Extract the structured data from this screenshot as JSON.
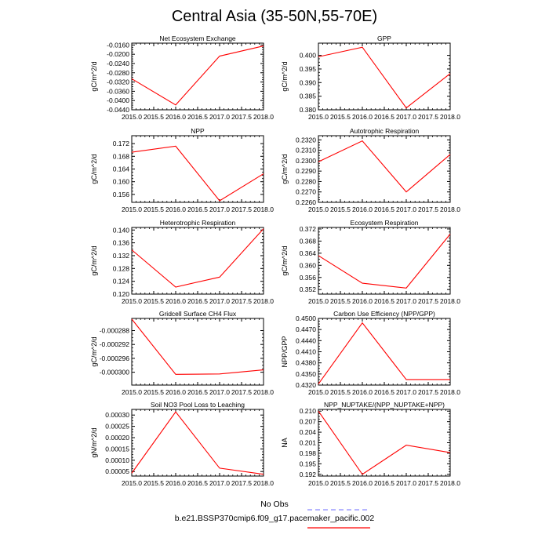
{
  "title": "Central Asia (35-50N,55-70E)",
  "legend": {
    "obs_label": "No Obs",
    "obs_color": "#8a8aff",
    "model_label": "b.e21.BSSP370cmip6.f09_g17.pacemaker_pacific.002",
    "model_color": "#ff0000"
  },
  "chart_data": [
    {
      "type": "line",
      "title": "Net Ecosystem Exchange",
      "ylabel": "gC/m^2/d",
      "x": [
        2015.0,
        2016.0,
        2017.0,
        2018.0
      ],
      "xlim": [
        2015.0,
        2018.0
      ],
      "xticks": [
        "2015.0",
        "2015.5",
        "2016.0",
        "2016.5",
        "2017.0",
        "2017.5",
        "2018.0"
      ],
      "ylim": [
        -0.044,
        -0.0152
      ],
      "yticks": [
        -0.044,
        -0.04,
        -0.036,
        -0.032,
        -0.028,
        -0.024,
        -0.02,
        -0.016
      ],
      "ytick_labels": [
        "-0.0440",
        "-0.0400",
        "-0.0360",
        "-0.0320",
        "-0.0280",
        "-0.0240",
        "-0.0200",
        "-0.0160"
      ],
      "series": [
        {
          "values": [
            -0.0306,
            -0.0419,
            -0.0208,
            -0.0164
          ]
        }
      ]
    },
    {
      "type": "line",
      "title": "GPP",
      "ylabel": "gC/m^2/d",
      "x": [
        2015.0,
        2016.0,
        2017.0,
        2018.0
      ],
      "xlim": [
        2015.0,
        2018.0
      ],
      "xticks": [
        "2015.0",
        "2015.5",
        "2016.0",
        "2016.5",
        "2017.0",
        "2017.5",
        "2018.0"
      ],
      "ylim": [
        0.38,
        0.4045
      ],
      "yticks": [
        0.38,
        0.385,
        0.39,
        0.395,
        0.4
      ],
      "ytick_labels": [
        "0.380",
        "0.385",
        "0.390",
        "0.395",
        "0.400"
      ],
      "series": [
        {
          "values": [
            0.3995,
            0.403,
            0.3807,
            0.3933
          ]
        }
      ]
    },
    {
      "type": "line",
      "title": "NPP",
      "ylabel": "gC/m^2/d",
      "x": [
        2015.0,
        2016.0,
        2017.0,
        2018.0
      ],
      "xlim": [
        2015.0,
        2018.0
      ],
      "xticks": [
        "2015.0",
        "2015.5",
        "2016.0",
        "2016.5",
        "2017.0",
        "2017.5",
        "2018.0"
      ],
      "ylim": [
        0.1535,
        0.1745
      ],
      "yticks": [
        0.156,
        0.16,
        0.164,
        0.168,
        0.172
      ],
      "ytick_labels": [
        "0.156",
        "0.160",
        "0.164",
        "0.168",
        "0.172"
      ],
      "series": [
        {
          "values": [
            0.1693,
            0.1712,
            0.154,
            0.1625
          ]
        }
      ]
    },
    {
      "type": "line",
      "title": "Autotrophic Respiration",
      "ylabel": "gC/m^2/d",
      "x": [
        2015.0,
        2016.0,
        2017.0,
        2018.0
      ],
      "xlim": [
        2015.0,
        2018.0
      ],
      "xticks": [
        "2015.0",
        "2015.5",
        "2016.0",
        "2016.5",
        "2017.0",
        "2017.5",
        "2018.0"
      ],
      "ylim": [
        0.226,
        0.2324
      ],
      "yticks": [
        0.226,
        0.227,
        0.228,
        0.229,
        0.23,
        0.231,
        0.232
      ],
      "ytick_labels": [
        "0.2260",
        "0.2270",
        "0.2280",
        "0.2290",
        "0.2300",
        "0.2310",
        "0.2320"
      ],
      "series": [
        {
          "values": [
            0.2299,
            0.2319,
            0.227,
            0.2306
          ]
        }
      ]
    },
    {
      "type": "line",
      "title": "Heterotrophic Respiration",
      "ylabel": "gC/m^2/d",
      "x": [
        2015.0,
        2016.0,
        2017.0,
        2018.0
      ],
      "xlim": [
        2015.0,
        2018.0
      ],
      "xticks": [
        "2015.0",
        "2015.5",
        "2016.0",
        "2016.5",
        "2017.0",
        "2017.5",
        "2018.0"
      ],
      "ylim": [
        0.12,
        0.1408
      ],
      "yticks": [
        0.12,
        0.124,
        0.128,
        0.132,
        0.136,
        0.14
      ],
      "ytick_labels": [
        "0.120",
        "0.124",
        "0.128",
        "0.132",
        "0.136",
        "0.140"
      ],
      "series": [
        {
          "values": [
            0.1338,
            0.1222,
            0.1253,
            0.1404
          ]
        }
      ]
    },
    {
      "type": "line",
      "title": "Ecosystem Respiration",
      "ylabel": "gC/m^2/d",
      "x": [
        2015.0,
        2016.0,
        2017.0,
        2018.0
      ],
      "xlim": [
        2015.0,
        2018.0
      ],
      "xticks": [
        "2015.0",
        "2015.5",
        "2016.0",
        "2016.5",
        "2017.0",
        "2017.5",
        "2018.0"
      ],
      "ylim": [
        0.3505,
        0.3725
      ],
      "yticks": [
        0.352,
        0.356,
        0.36,
        0.364,
        0.368,
        0.372
      ],
      "ytick_labels": [
        "0.352",
        "0.356",
        "0.360",
        "0.364",
        "0.368",
        "0.372"
      ],
      "series": [
        {
          "values": [
            0.3632,
            0.3541,
            0.3525,
            0.3703
          ]
        }
      ]
    },
    {
      "type": "line",
      "title": "Gridcell Surface CH4 Flux",
      "ylabel": "gC/m^2/d",
      "x": [
        2015.0,
        2016.0,
        2017.0,
        2018.0
      ],
      "xlim": [
        2015.0,
        2018.0
      ],
      "xticks": [
        "2015.0",
        "2015.5",
        "2016.0",
        "2016.5",
        "2017.0",
        "2017.5",
        "2018.0"
      ],
      "ylim": [
        -0.0003037,
        -0.0002845
      ],
      "yticks": [
        -0.0003,
        -0.000296,
        -0.000292,
        -0.000288
      ],
      "ytick_labels": [
        "-0.000300",
        "-0.000296",
        "-0.000292",
        "-0.000288"
      ],
      "series": [
        {
          "values": [
            -0.0002847,
            -0.0003006,
            -0.0003005,
            -0.0002993
          ]
        }
      ]
    },
    {
      "type": "line",
      "title": "Carbon Use Efficiency (NPP/GPP)",
      "ylabel": "NPP/GPP",
      "x": [
        2015.0,
        2016.0,
        2017.0,
        2018.0
      ],
      "xlim": [
        2015.0,
        2018.0
      ],
      "xticks": [
        "2015.0",
        "2015.5",
        "2016.0",
        "2016.5",
        "2017.0",
        "2017.5",
        "2018.0"
      ],
      "ylim": [
        0.432,
        0.45
      ],
      "yticks": [
        0.432,
        0.435,
        0.438,
        0.441,
        0.444,
        0.447,
        0.45
      ],
      "ytick_labels": [
        "0.4320",
        "0.4350",
        "0.4380",
        "0.4410",
        "0.4440",
        "0.4470",
        "0.4500"
      ],
      "series": [
        {
          "values": [
            0.4323,
            0.4488,
            0.4335,
            0.4335
          ]
        }
      ]
    },
    {
      "type": "line",
      "title": "Soil NO3 Pool Loss to Leaching",
      "ylabel": "gN/m^2/d",
      "x": [
        2015.0,
        2016.0,
        2017.0,
        2018.0
      ],
      "xlim": [
        2015.0,
        2018.0
      ],
      "xticks": [
        "2015.0",
        "2015.5",
        "2016.0",
        "2016.5",
        "2017.0",
        "2017.5",
        "2018.0"
      ],
      "ylim": [
        3e-05,
        0.000325
      ],
      "yticks": [
        5e-05,
        0.0001,
        0.00015,
        0.0002,
        0.00025,
        0.0003
      ],
      "ytick_labels": [
        "0.00005",
        "0.00010",
        "0.00015",
        "0.00020",
        "0.00025",
        "0.00030"
      ],
      "series": [
        {
          "values": [
            4.3e-05,
            0.000314,
            6.5e-05,
            3.8e-05
          ]
        }
      ]
    },
    {
      "type": "line",
      "title": "NPP_NUPTAKE/(NPP_NUPTAKE+NPP)",
      "ylabel": "NA",
      "x": [
        2015.0,
        2016.0,
        2017.0,
        2018.0
      ],
      "xlim": [
        2015.0,
        2018.0
      ],
      "xticks": [
        "2015.0",
        "2015.5",
        "2016.0",
        "2016.5",
        "2017.0",
        "2017.5",
        "2018.0"
      ],
      "ylim": [
        0.1915,
        0.2105
      ],
      "yticks": [
        0.192,
        0.195,
        0.198,
        0.201,
        0.204,
        0.207,
        0.21
      ],
      "ytick_labels": [
        "0.192",
        "0.195",
        "0.198",
        "0.201",
        "0.204",
        "0.207",
        "0.210"
      ],
      "series": [
        {
          "values": [
            0.21,
            0.192,
            0.2003,
            0.1982
          ]
        }
      ]
    }
  ]
}
